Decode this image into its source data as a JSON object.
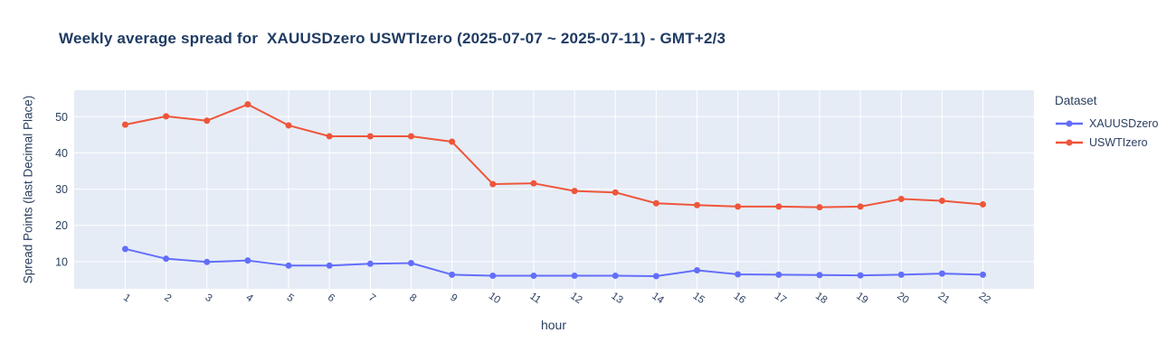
{
  "title": "Weekly average spread for  XAUUSDzero USWTIzero (2025-07-07 ~ 2025-07-11) - GMT+2/3",
  "colors": {
    "text": "#2a3f5f",
    "title_text": "#1f3b63",
    "plot_background": "#e5ecf6",
    "gridline": "#ffffff",
    "series_xauusd": "#636efa",
    "series_uswti": "#ef553b"
  },
  "legend": {
    "title": "Dataset",
    "items": [
      {
        "label": "XAUUSDzero",
        "color": "#636efa"
      },
      {
        "label": "USWTIzero",
        "color": "#ef553b"
      }
    ]
  },
  "chart_data": {
    "type": "line",
    "title": "Weekly average spread for  XAUUSDzero USWTIzero (2025-07-07 ~ 2025-07-11) - GMT+2/3",
    "xlabel": "hour",
    "ylabel": "Spread Points (last Decimal Place)",
    "x": [
      1,
      2,
      3,
      4,
      5,
      6,
      7,
      8,
      9,
      10,
      11,
      12,
      13,
      14,
      15,
      16,
      17,
      18,
      19,
      20,
      21,
      22
    ],
    "series": [
      {
        "name": "XAUUSDzero",
        "color": "#636efa",
        "values": [
          13.5,
          10.8,
          9.9,
          10.3,
          8.9,
          8.9,
          9.4,
          9.6,
          6.4,
          6.1,
          6.1,
          6.1,
          6.1,
          6.0,
          7.6,
          6.5,
          6.4,
          6.3,
          6.2,
          6.4,
          6.7,
          6.4
        ]
      },
      {
        "name": "USWTIzero",
        "color": "#ef553b",
        "values": [
          47.8,
          50.1,
          48.9,
          53.4,
          47.6,
          44.6,
          44.6,
          44.6,
          43.1,
          31.4,
          31.6,
          29.5,
          29.1,
          26.1,
          25.6,
          25.2,
          25.2,
          25.0,
          25.2,
          27.3,
          26.8,
          25.8
        ]
      }
    ],
    "xticks": [
      1,
      2,
      3,
      4,
      5,
      6,
      7,
      8,
      9,
      10,
      11,
      12,
      13,
      14,
      15,
      16,
      17,
      18,
      19,
      20,
      21,
      22
    ],
    "yticks": [
      10,
      20,
      30,
      40,
      50
    ],
    "xlim": [
      -0.25,
      23.25
    ],
    "ylim": [
      2.5,
      57.3
    ],
    "xtick_angle_deg": 35,
    "grid": true,
    "legend_position": "right"
  }
}
